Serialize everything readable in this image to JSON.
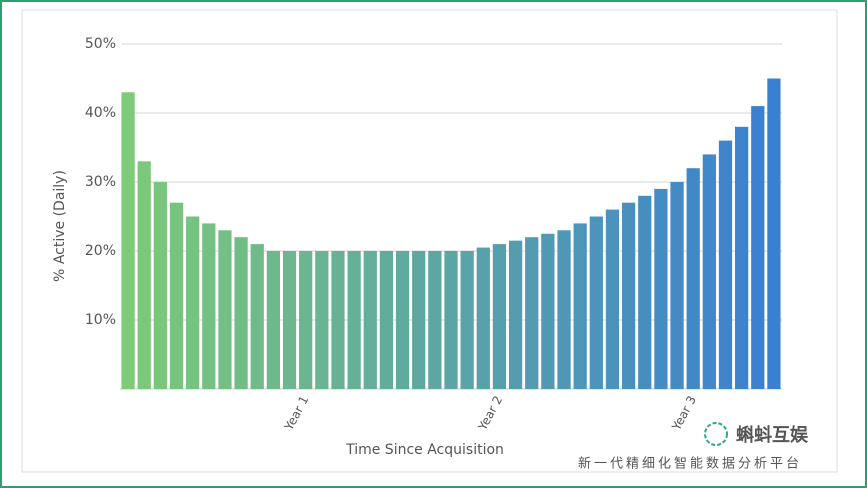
{
  "chart_data": {
    "type": "bar",
    "ylabel": "% Active (Daily)",
    "xlabel": "Time Since Acquisition",
    "categories": [
      null,
      null,
      null,
      null,
      null,
      null,
      null,
      null,
      null,
      null,
      null,
      "Year 1",
      null,
      null,
      null,
      null,
      null,
      null,
      null,
      null,
      null,
      null,
      null,
      "Year 2",
      null,
      null,
      null,
      null,
      null,
      null,
      null,
      null,
      null,
      null,
      null,
      "Year 3",
      null,
      null,
      null,
      null,
      null
    ],
    "values": [
      43,
      33,
      30,
      27,
      25,
      24,
      23,
      22,
      21,
      20,
      20,
      20,
      20,
      20,
      20,
      20,
      20,
      20,
      20,
      20,
      20,
      20,
      20.5,
      21,
      21.5,
      22,
      22.5,
      23,
      24,
      25,
      26,
      27,
      28,
      29,
      30,
      32,
      34,
      36,
      38,
      41,
      45
    ],
    "gradient": [
      "#7dca78",
      "#3a7fd2"
    ],
    "ylim": [
      0,
      50
    ],
    "yticks": [
      {
        "value": 10,
        "label": "10%"
      },
      {
        "value": 20,
        "label": "20%"
      },
      {
        "value": 30,
        "label": "30%"
      },
      {
        "value": 40,
        "label": "40%"
      },
      {
        "value": 50,
        "label": "50%"
      }
    ],
    "grid": true
  },
  "watermark": {
    "brand": "蝌蚪互娱",
    "tagline": "新一代精细化智能数据分析平台"
  }
}
